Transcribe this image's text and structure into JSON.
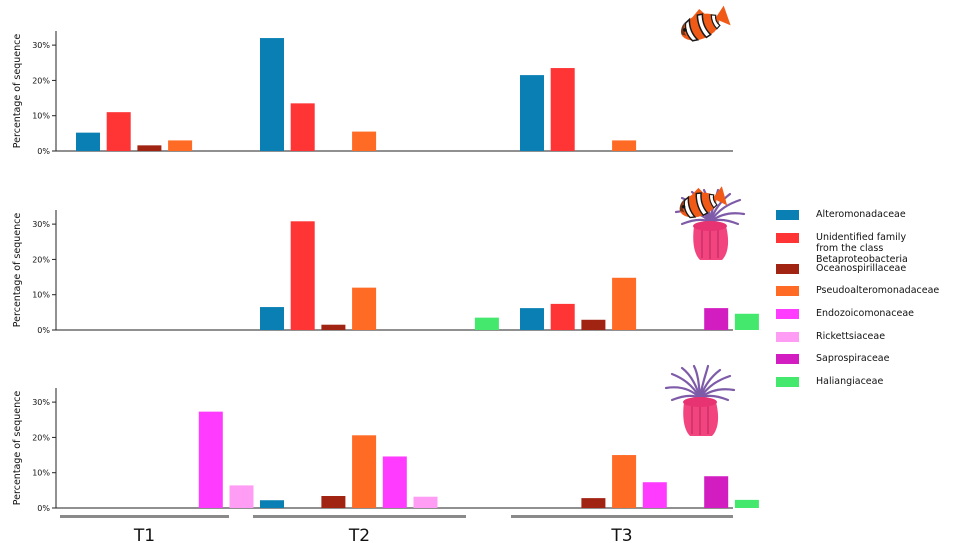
{
  "chart_data": {
    "type": "bar",
    "ylabel": "Percentage of sequence",
    "yticks": [
      "0%",
      "10%",
      "20%",
      "30%"
    ],
    "ylim": [
      0,
      34
    ],
    "groups": [
      "T1",
      "T2",
      "T3"
    ],
    "families": [
      {
        "name": "Alteromonadaceae",
        "color": "#0a7fb3"
      },
      {
        "name": "Unidentified family\nfrom the class Betaproteobacteria",
        "color": "#ff3434"
      },
      {
        "name": "Oceanospirillaceae",
        "color": "#a12312"
      },
      {
        "name": "Pseudoalteromonadaceae",
        "color": "#ff6a25"
      },
      {
        "name": "Endozoicomonaceae",
        "color": "#ff3bff"
      },
      {
        "name": "Rickettsiaceae",
        "color": "#ff9cf4"
      },
      {
        "name": "Saprospiraceae",
        "color": "#d21dc1"
      },
      {
        "name": "Haliangiaceae",
        "color": "#43e86c"
      }
    ],
    "panels": [
      {
        "icon": "clownfish-icon",
        "bars": [
          {
            "group": "T1",
            "family": "Alteromonadaceae",
            "value": 5.2
          },
          {
            "group": "T1",
            "family": "Unidentified family\nfrom the class Betaproteobacteria",
            "value": 11
          },
          {
            "group": "T1",
            "family": "Oceanospirillaceae",
            "value": 1.6
          },
          {
            "group": "T1",
            "family": "Pseudoalteromonadaceae",
            "value": 3
          },
          {
            "group": "T2",
            "family": "Alteromonadaceae",
            "value": 32
          },
          {
            "group": "T2",
            "family": "Unidentified family\nfrom the class Betaproteobacteria",
            "value": 13.5
          },
          {
            "group": "T2",
            "family": "Pseudoalteromonadaceae",
            "value": 5.5
          },
          {
            "group": "T3",
            "family": "Alteromonadaceae",
            "value": 21.5
          },
          {
            "group": "T3",
            "family": "Unidentified family\nfrom the class Betaproteobacteria",
            "value": 23.5
          },
          {
            "group": "T3",
            "family": "Pseudoalteromonadaceae",
            "value": 3
          }
        ]
      },
      {
        "icon": "clownfish-in-anemone-icon",
        "bars": [
          {
            "group": "T2",
            "family": "Alteromonadaceae",
            "value": 6.5
          },
          {
            "group": "T2",
            "family": "Unidentified family\nfrom the class Betaproteobacteria",
            "value": 30.8
          },
          {
            "group": "T2",
            "family": "Oceanospirillaceae",
            "value": 1.5
          },
          {
            "group": "T2",
            "family": "Pseudoalteromonadaceae",
            "value": 12
          },
          {
            "group": "T2",
            "family": "Haliangiaceae",
            "value": 3.5
          },
          {
            "group": "T3",
            "family": "Alteromonadaceae",
            "value": 6.2
          },
          {
            "group": "T3",
            "family": "Unidentified family\nfrom the class Betaproteobacteria",
            "value": 7.4
          },
          {
            "group": "T3",
            "family": "Oceanospirillaceae",
            "value": 2.9
          },
          {
            "group": "T3",
            "family": "Pseudoalteromonadaceae",
            "value": 14.8
          },
          {
            "group": "T3",
            "family": "Haliangiaceae",
            "value": 4.6
          },
          {
            "group": "T3",
            "family": "Saprospiraceae",
            "value": 6.2
          }
        ]
      },
      {
        "icon": "sea-anemone-icon",
        "bars": [
          {
            "group": "T1",
            "family": "Endozoicomonaceae",
            "value": 27.3
          },
          {
            "group": "T1",
            "family": "Rickettsiaceae",
            "value": 6.4
          },
          {
            "group": "T2",
            "family": "Alteromonadaceae",
            "value": 2.2
          },
          {
            "group": "T2",
            "family": "Oceanospirillaceae",
            "value": 3.4
          },
          {
            "group": "T2",
            "family": "Pseudoalteromonadaceae",
            "value": 20.6
          },
          {
            "group": "T2",
            "family": "Endozoicomonaceae",
            "value": 14.6
          },
          {
            "group": "T2",
            "family": "Rickettsiaceae",
            "value": 3.2
          },
          {
            "group": "T3",
            "family": "Oceanospirillaceae",
            "value": 2.8
          },
          {
            "group": "T3",
            "family": "Pseudoalteromonadaceae",
            "value": 15
          },
          {
            "group": "T3",
            "family": "Haliangiaceae",
            "value": 2.3
          },
          {
            "group": "T3",
            "family": "Saprospiraceae",
            "value": 9
          },
          {
            "group": "T3",
            "family": "Endozoicomonaceae",
            "value": 7.3
          }
        ]
      }
    ]
  }
}
